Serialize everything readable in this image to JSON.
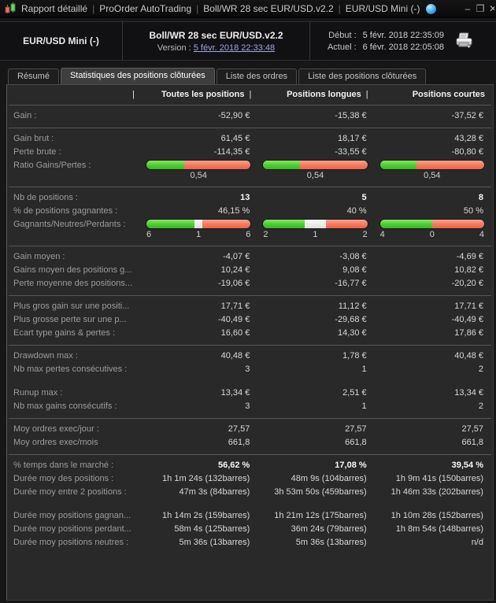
{
  "window": {
    "title_parts": [
      "Rapport détaillé",
      "ProOrder AutoTrading",
      "Boll/WR 28 sec EUR/USD.v2.2",
      "EUR/USD Mini (-)"
    ],
    "title_separator": "|",
    "controls": {
      "minimize": "–",
      "maximize": "❐",
      "close": "✕"
    }
  },
  "header": {
    "instrument": "EUR/USD Mini (-)",
    "strategy": "Boll/WR 28 sec EUR/USD.v2.2",
    "version_label": "Version :",
    "version_value": "5 févr. 2018 22:33:48",
    "debut_label": "Début :",
    "debut_value": "5 févr. 2018 22:35:09",
    "actuel_label": "Actuel :",
    "actuel_value": "6 févr. 2018 22:05:08"
  },
  "tabs": [
    {
      "id": "resume",
      "label": "Résumé",
      "active": false
    },
    {
      "id": "stats-positions-cloturees",
      "label": "Statistiques des positions clôturées",
      "active": true
    },
    {
      "id": "liste-ordres",
      "label": "Liste des ordres",
      "active": false
    },
    {
      "id": "liste-positions-cloturees",
      "label": "Liste des positions clôturées",
      "active": false
    }
  ],
  "colors": {
    "green": "#4ecb32",
    "red": "#f07a60",
    "neutral": "#ededе6",
    "link": "#a3a3e0"
  },
  "table": {
    "column_separator": "|",
    "columns": [
      "Toutes les positions",
      "Positions longues",
      "Positions courtes"
    ],
    "sections": [
      {
        "rows": [
          {
            "label": "Gain :",
            "values": [
              "-52,90 €",
              "-15,38 €",
              "-37,52 €"
            ]
          }
        ]
      },
      {
        "rows": [
          {
            "label": "Gain brut :",
            "values": [
              "61,45 €",
              "18,17 €",
              "43,28 €"
            ]
          },
          {
            "label": "Perte brute :",
            "values": [
              "-114,35 €",
              "-33,55 €",
              "-80,80 €"
            ]
          },
          {
            "label": "Ratio Gains/Pertes :",
            "type": "bars",
            "bars": [
              {
                "segments": [
                  {
                    "color": "green",
                    "pct": 36
                  },
                  {
                    "color": "red",
                    "pct": 64
                  }
                ],
                "caption": "0,54"
              },
              {
                "segments": [
                  {
                    "color": "green",
                    "pct": 35
                  },
                  {
                    "color": "red",
                    "pct": 65
                  }
                ],
                "caption": "0,54"
              },
              {
                "segments": [
                  {
                    "color": "green",
                    "pct": 35
                  },
                  {
                    "color": "red",
                    "pct": 65
                  }
                ],
                "caption": "0,54"
              }
            ]
          }
        ]
      },
      {
        "rows": [
          {
            "label": "Nb de positions :",
            "values": [
              "13",
              "5",
              "8"
            ],
            "bold": true
          },
          {
            "label": "% de positions gagnantes :",
            "values": [
              "46,15 %",
              "40 %",
              "50 %"
            ]
          },
          {
            "label": "Gagnants/Neutres/Perdants :",
            "type": "bars",
            "bars": [
              {
                "segments": [
                  {
                    "color": "green",
                    "pct": 46.2
                  },
                  {
                    "color": "neutral",
                    "pct": 7.6
                  },
                  {
                    "color": "red",
                    "pct": 46.2
                  }
                ],
                "captions": [
                  "6",
                  "1",
                  "6"
                ]
              },
              {
                "segments": [
                  {
                    "color": "green",
                    "pct": 40
                  },
                  {
                    "color": "neutral",
                    "pct": 20
                  },
                  {
                    "color": "red",
                    "pct": 40
                  }
                ],
                "captions": [
                  "2",
                  "1",
                  "2"
                ]
              },
              {
                "segments": [
                  {
                    "color": "green",
                    "pct": 50
                  },
                  {
                    "color": "red",
                    "pct": 50
                  }
                ],
                "captions": [
                  "4",
                  "0",
                  "4"
                ]
              }
            ]
          }
        ]
      },
      {
        "rows": [
          {
            "label": "Gain moyen :",
            "values": [
              "-4,07 €",
              "-3,08 €",
              "-4,69 €"
            ]
          },
          {
            "label": "Gains moyen des positions g...",
            "values": [
              "10,24 €",
              "9,08 €",
              "10,82 €"
            ]
          },
          {
            "label": "Perte moyenne des positions...",
            "values": [
              "-19,06 €",
              "-16,77 €",
              "-20,20 €"
            ]
          }
        ]
      },
      {
        "rows": [
          {
            "label": "Plus gros gain sur une positi...",
            "values": [
              "17,71 €",
              "11,12 €",
              "17,71 €"
            ]
          },
          {
            "label": "Plus grosse perte sur une p...",
            "values": [
              "-40,49 €",
              "-29,68 €",
              "-40,49 €"
            ]
          },
          {
            "label": "Ecart type gains & pertes :",
            "values": [
              "16,60 €",
              "14,30 €",
              "17,86 €"
            ]
          }
        ]
      },
      {
        "rows": [
          {
            "label": "Drawdown max :",
            "values": [
              "40,48 €",
              "1,78 €",
              "40,48 €"
            ]
          },
          {
            "label": "Nb max pertes consécutives :",
            "values": [
              "3",
              "1",
              "2"
            ]
          },
          {
            "type": "gap"
          },
          {
            "label": "Runup max :",
            "values": [
              "13,34 €",
              "2,51 €",
              "13,34 €"
            ]
          },
          {
            "label": "Nb max gains consécutifs :",
            "values": [
              "3",
              "1",
              "2"
            ]
          }
        ]
      },
      {
        "rows": [
          {
            "label": "Moy ordres exec/jour :",
            "values": [
              "27,57",
              "27,57",
              "27,57"
            ]
          },
          {
            "label": "Moy ordres exec/mois",
            "values": [
              "661,8",
              "661,8",
              "661,8"
            ]
          }
        ]
      },
      {
        "rows": [
          {
            "label": "% temps dans le marché :",
            "values": [
              "56,62 %",
              "17,08 %",
              "39,54 %"
            ],
            "bold": true
          },
          {
            "label": "Durée moy des positions :",
            "values": [
              "1h 1m 24s (132barres)",
              "48m 9s (104barres)",
              "1h 9m 41s (150barres)"
            ]
          },
          {
            "label": "Durée moy entre 2 positions :",
            "values": [
              "47m 3s (84barres)",
              "3h 53m 50s (459barres)",
              "1h 46m 33s (202barres)"
            ]
          },
          {
            "type": "gap"
          },
          {
            "label": "Durée moy positions gagnan...",
            "values": [
              "1h 14m 2s (159barres)",
              "1h 21m 12s (175barres)",
              "1h 10m 28s (152barres)"
            ]
          },
          {
            "label": "Durée moy positions perdant...",
            "values": [
              "58m 4s (125barres)",
              "36m 24s (79barres)",
              "1h 8m 54s (148barres)"
            ]
          },
          {
            "label": "Durée moy positions neutres :",
            "values": [
              "5m 36s (13barres)",
              "5m 36s (13barres)",
              "n/d"
            ]
          }
        ]
      }
    ]
  }
}
